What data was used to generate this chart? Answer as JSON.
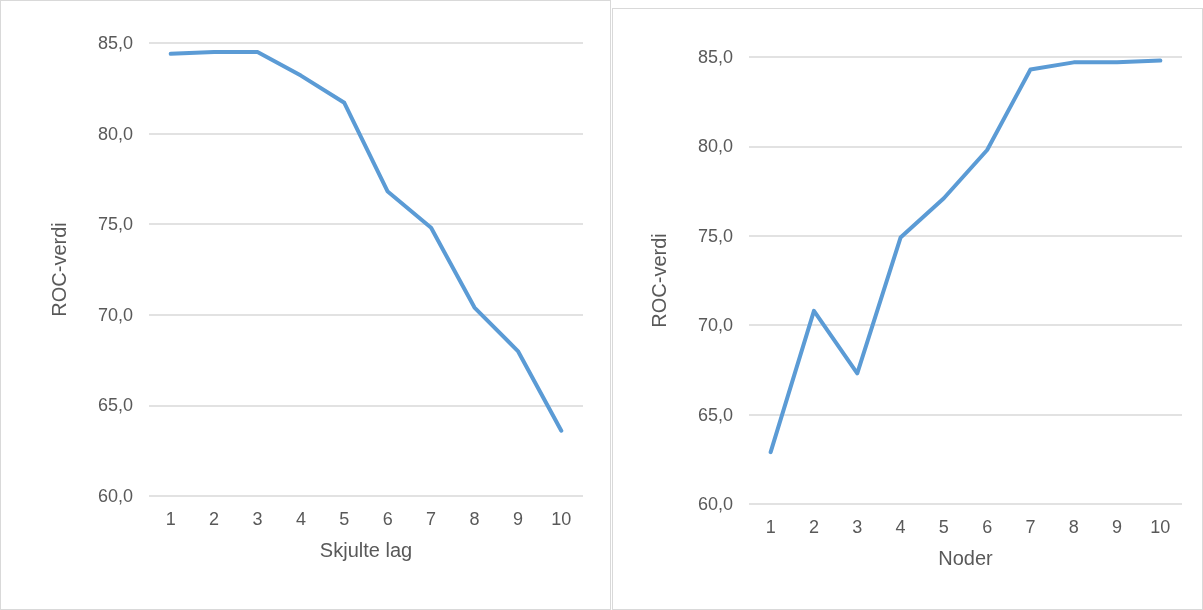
{
  "chart_data": [
    {
      "type": "line",
      "xlabel": "Skjulte lag",
      "ylabel": "ROC-verdi",
      "categories": [
        "1",
        "2",
        "3",
        "4",
        "5",
        "6",
        "7",
        "8",
        "9",
        "10"
      ],
      "series": [
        {
          "color": "#5b9bd5",
          "values": [
            84.4,
            84.5,
            84.5,
            83.2,
            81.7,
            76.8,
            74.8,
            70.4,
            68.0,
            63.6
          ]
        }
      ],
      "ylim": [
        60,
        85
      ],
      "yticks": [
        {
          "value": 60,
          "label": "60,0"
        },
        {
          "value": 65,
          "label": "65,0"
        },
        {
          "value": 70,
          "label": "70,0"
        },
        {
          "value": 75,
          "label": "75,0"
        },
        {
          "value": 80,
          "label": "80,0"
        },
        {
          "value": 85,
          "label": "85,0"
        }
      ],
      "grid": "y",
      "marker": "none",
      "line_style": "solid"
    },
    {
      "type": "line",
      "xlabel": "Noder",
      "ylabel": "ROC-verdi",
      "categories": [
        "1",
        "2",
        "3",
        "4",
        "5",
        "6",
        "7",
        "8",
        "9",
        "10"
      ],
      "series": [
        {
          "color": "#5b9bd5",
          "values": [
            62.9,
            70.8,
            67.3,
            74.9,
            77.1,
            79.8,
            84.3,
            84.7,
            84.7,
            84.8
          ]
        }
      ],
      "ylim": [
        60,
        85
      ],
      "yticks": [
        {
          "value": 60,
          "label": "60,0"
        },
        {
          "value": 65,
          "label": "65,0"
        },
        {
          "value": 70,
          "label": "70,0"
        },
        {
          "value": 75,
          "label": "75,0"
        },
        {
          "value": 80,
          "label": "80,0"
        },
        {
          "value": 85,
          "label": "85,0"
        }
      ],
      "grid": "y",
      "marker": "none",
      "line_style": "solid"
    }
  ]
}
